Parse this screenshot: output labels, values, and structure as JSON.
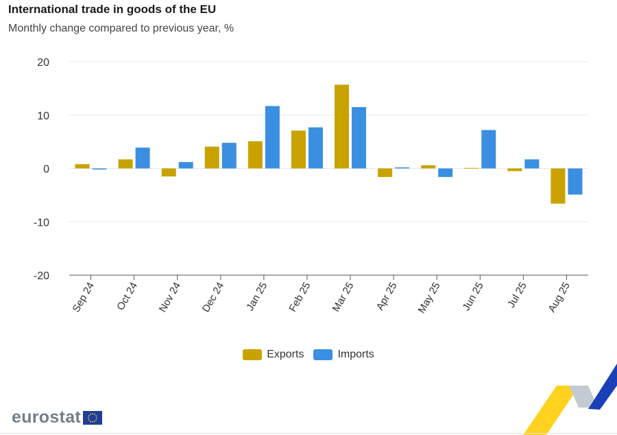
{
  "header": {
    "title": "International trade in goods of the EU",
    "subtitle": "Monthly change compared to previous year, %"
  },
  "chart_data": {
    "type": "bar",
    "title": "International trade in goods of the EU",
    "subtitle": "Monthly change compared to previous year, %",
    "categories": [
      "Sep 24",
      "Oct 24",
      "Nov 24",
      "Dec 24",
      "Jan 25",
      "Feb 25",
      "Mar 25",
      "Apr 25",
      "May 25",
      "Jun 25",
      "Jul 25",
      "Aug 25"
    ],
    "series": [
      {
        "name": "Exports",
        "color": "#c9a200",
        "values": [
          0.8,
          1.7,
          -1.5,
          4.1,
          5.1,
          7.1,
          15.7,
          -1.6,
          0.6,
          0.1,
          -0.5,
          -6.6
        ]
      },
      {
        "name": "Imports",
        "color": "#3a8fe0",
        "values": [
          -0.2,
          3.9,
          1.2,
          4.8,
          11.7,
          7.7,
          11.5,
          0.2,
          -1.6,
          7.2,
          1.7,
          -4.9
        ]
      }
    ],
    "yticks": [
      20,
      10,
      0,
      -10,
      -20
    ],
    "ylim": [
      -20,
      20
    ],
    "xlabel": "",
    "ylabel": "",
    "grid": true,
    "legend": "bottom-center"
  },
  "legend": {
    "items": [
      {
        "label": "Exports",
        "color": "#c9a200"
      },
      {
        "label": "Imports",
        "color": "#3a8fe0"
      }
    ]
  },
  "logo": {
    "text": "eurostat"
  }
}
